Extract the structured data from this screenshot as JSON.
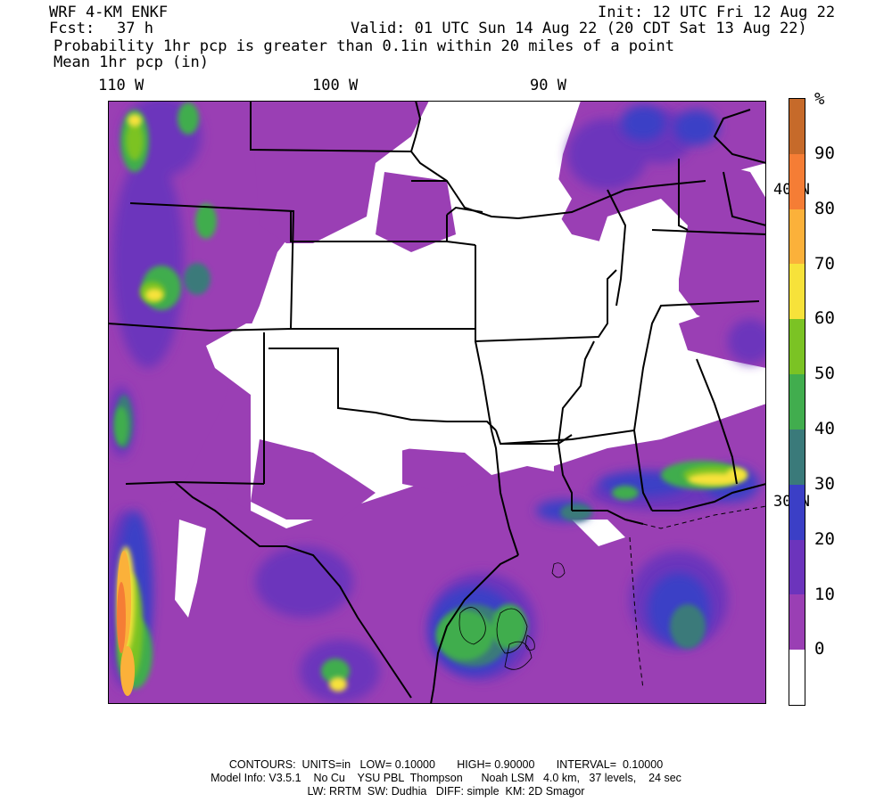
{
  "header": {
    "model": "WRF 4-KM ENKF",
    "fcst_label": "Fcst:",
    "fcst_value": "37 h",
    "init": "Init: 12 UTC Fri 12 Aug 22",
    "valid": "Valid: 01 UTC Sun 14 Aug 22 (20 CDT Sat 13 Aug 22)",
    "field1": "Probability 1hr pcp is greater than 0.1in within 20 miles of a point",
    "field2": "Mean 1hr pcp (in)"
  },
  "map": {
    "lon_labels": [
      "110 W",
      "100 W",
      "90 W"
    ],
    "lat_labels": [
      "40 N",
      "30 N"
    ]
  },
  "colorbar": {
    "unit": "%",
    "labels": [
      "90",
      "80",
      "70",
      "60",
      "50",
      "40",
      "30",
      "20",
      "10",
      "0"
    ],
    "colors": [
      "#ffffff",
      "#9a3fb4",
      "#6c34bc",
      "#3b3fc6",
      "#3a7a7a",
      "#41ad4e",
      "#7bc324",
      "#f7e23a",
      "#fbb13a",
      "#f57d35",
      "#c66a2a"
    ]
  },
  "footer": {
    "line1": "CONTOURS:  UNITS=in   LOW= 0.10000       HIGH= 0.90000       INTERVAL=  0.10000",
    "line2": "Model Info: V3.5.1    No Cu    YSU PBL  Thompson      Noah LSM   4.0 km,   37 levels,    24 sec",
    "line3": "LW: RRTM  SW: Dudhia   DIFF: simple  KM: 2D Smagor"
  }
}
